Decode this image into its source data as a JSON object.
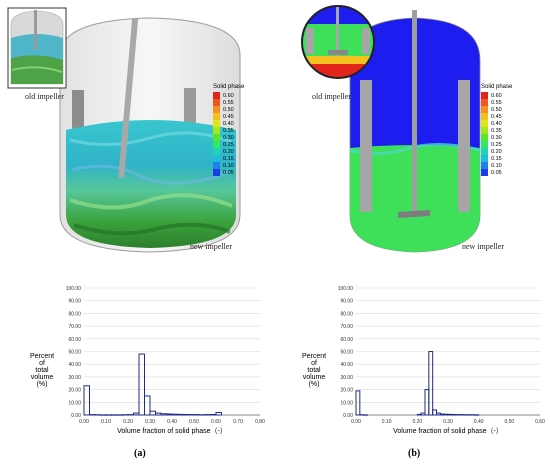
{
  "figure": {
    "panel_a": {
      "caption": "(a)",
      "inset_label": "old impeller",
      "main_label": "new impeller"
    },
    "panel_b": {
      "caption": "(b)",
      "inset_label": "old impeller",
      "main_label": "new impeller"
    },
    "legend": {
      "title": "Solid phase",
      "levels": [
        "0.60",
        "0.55",
        "0.50",
        "0.45",
        "0.40",
        "0.35",
        "0.30",
        "0.25",
        "0.20",
        "0.15",
        "0.10",
        "0.05"
      ],
      "colors": [
        "#e3241b",
        "#f0571e",
        "#f6901e",
        "#f4c01e",
        "#e0e61e",
        "#a6e61e",
        "#5ae62a",
        "#2ee86a",
        "#1ed7b0",
        "#1ebbe0",
        "#1e82ea",
        "#1e3ce6"
      ]
    }
  },
  "chart_data": [
    {
      "type": "bar",
      "panel": "a",
      "ylabel": [
        "Percent",
        "of",
        "total",
        "volume",
        "(%)"
      ],
      "xlabel": "Volume fraction of solid phase（-）",
      "xlim": [
        0,
        0.8
      ],
      "ylim": [
        0,
        100
      ],
      "y_ticks": [
        "0.00",
        "10.00",
        "20.00",
        "30.00",
        "40.00",
        "50.00",
        "60.00",
        "70.00",
        "80.00",
        "90.00",
        "100.00"
      ],
      "x_ticks": [
        "0.00",
        "0.10",
        "0.20",
        "0.30",
        "0.40",
        "0.50",
        "0.60",
        "0.70",
        "0.80"
      ],
      "bin_width": 0.025,
      "bars": [
        {
          "x": 0.0,
          "value": 23
        },
        {
          "x": 0.025,
          "value": 0.3
        },
        {
          "x": 0.05,
          "value": 0.2
        },
        {
          "x": 0.075,
          "value": 0.1
        },
        {
          "x": 0.1,
          "value": 0.1
        },
        {
          "x": 0.125,
          "value": 0.1
        },
        {
          "x": 0.15,
          "value": 0.1
        },
        {
          "x": 0.175,
          "value": 0.2
        },
        {
          "x": 0.2,
          "value": 0.3
        },
        {
          "x": 0.225,
          "value": 1.5
        },
        {
          "x": 0.25,
          "value": 48
        },
        {
          "x": 0.275,
          "value": 15
        },
        {
          "x": 0.3,
          "value": 3
        },
        {
          "x": 0.325,
          "value": 1.5
        },
        {
          "x": 0.35,
          "value": 1
        },
        {
          "x": 0.375,
          "value": 0.8
        },
        {
          "x": 0.4,
          "value": 0.6
        },
        {
          "x": 0.425,
          "value": 0.5
        },
        {
          "x": 0.45,
          "value": 0.4
        },
        {
          "x": 0.475,
          "value": 0.3
        },
        {
          "x": 0.5,
          "value": 0.3
        },
        {
          "x": 0.525,
          "value": 0.2
        },
        {
          "x": 0.55,
          "value": 0.3
        },
        {
          "x": 0.575,
          "value": 0.4
        },
        {
          "x": 0.6,
          "value": 2
        }
      ]
    },
    {
      "type": "bar",
      "panel": "b",
      "ylabel": [
        "Percent",
        "of",
        "total",
        "volume",
        "(%)"
      ],
      "xlabel": "Volume fraction of solid phase（-）",
      "xlim": [
        0,
        0.6
      ],
      "ylim": [
        0,
        100
      ],
      "y_ticks": [
        "0.00",
        "10.00",
        "20.00",
        "30.00",
        "40.00",
        "50.00",
        "60.00",
        "70.00",
        "80.00",
        "90.00",
        "100.00"
      ],
      "x_ticks": [
        "0.00",
        "0.10",
        "0.20",
        "0.30",
        "0.40",
        "0.50",
        "0.60"
      ],
      "bin_width": 0.0125,
      "bars": [
        {
          "x": 0.0,
          "value": 19
        },
        {
          "x": 0.0125,
          "value": 0.2
        },
        {
          "x": 0.025,
          "value": 0.1
        },
        {
          "x": 0.2,
          "value": 0.5
        },
        {
          "x": 0.2125,
          "value": 1.5
        },
        {
          "x": 0.225,
          "value": 20
        },
        {
          "x": 0.2375,
          "value": 50
        },
        {
          "x": 0.25,
          "value": 4
        },
        {
          "x": 0.2625,
          "value": 1.5
        },
        {
          "x": 0.275,
          "value": 0.8
        },
        {
          "x": 0.2875,
          "value": 0.6
        },
        {
          "x": 0.3,
          "value": 0.5
        },
        {
          "x": 0.3125,
          "value": 0.4
        },
        {
          "x": 0.325,
          "value": 0.3
        },
        {
          "x": 0.3375,
          "value": 0.3
        },
        {
          "x": 0.35,
          "value": 0.2
        },
        {
          "x": 0.3625,
          "value": 0.2
        },
        {
          "x": 0.375,
          "value": 0.2
        },
        {
          "x": 0.3875,
          "value": 0.1
        }
      ]
    }
  ]
}
